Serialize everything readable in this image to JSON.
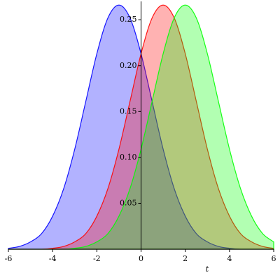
{
  "chart_data": {
    "type": "area",
    "x_label": "t",
    "x": [
      -6,
      -5.5,
      -5,
      -4.5,
      -4,
      -3.5,
      -3,
      -2.5,
      -2,
      -1.5,
      -1,
      -0.5,
      0,
      0.5,
      1,
      1.5,
      2,
      2.5,
      3,
      3.5,
      4,
      4.5,
      5,
      5.5,
      6
    ],
    "series": [
      {
        "color": "#0000ff",
        "values": [
          0.001,
          0.003,
          0.008,
          0.017,
          0.036,
          0.066,
          0.109,
          0.161,
          0.213,
          0.252,
          0.266,
          0.252,
          0.213,
          0.161,
          0.109,
          0.066,
          0.036,
          0.017,
          0.008,
          0.003,
          0.001,
          0,
          0,
          0,
          0
        ]
      },
      {
        "color": "#ff0000",
        "values": [
          0,
          0,
          0,
          0,
          0.001,
          0.003,
          0.008,
          0.017,
          0.036,
          0.066,
          0.109,
          0.161,
          0.213,
          0.252,
          0.266,
          0.252,
          0.213,
          0.161,
          0.109,
          0.066,
          0.036,
          0.017,
          0.008,
          0.003,
          0.001
        ]
      },
      {
        "color": "#00ff00",
        "values": [
          0,
          0,
          0,
          0,
          0,
          0,
          0.001,
          0.003,
          0.008,
          0.017,
          0.036,
          0.066,
          0.109,
          0.161,
          0.213,
          0.252,
          0.266,
          0.252,
          0.213,
          0.161,
          0.109,
          0.066,
          0.036,
          0.017,
          0.008
        ]
      }
    ],
    "xlim": [
      -6,
      6
    ],
    "ylim": [
      0,
      0.27
    ],
    "xticks": [
      -6,
      -4,
      -2,
      0,
      2,
      4,
      6
    ],
    "yticks": [
      0.05,
      {
        "value": 0.1,
        "label": "0.10"
      },
      0.15,
      {
        "value": 0.2,
        "label": "0.20"
      },
      0.25
    ]
  }
}
